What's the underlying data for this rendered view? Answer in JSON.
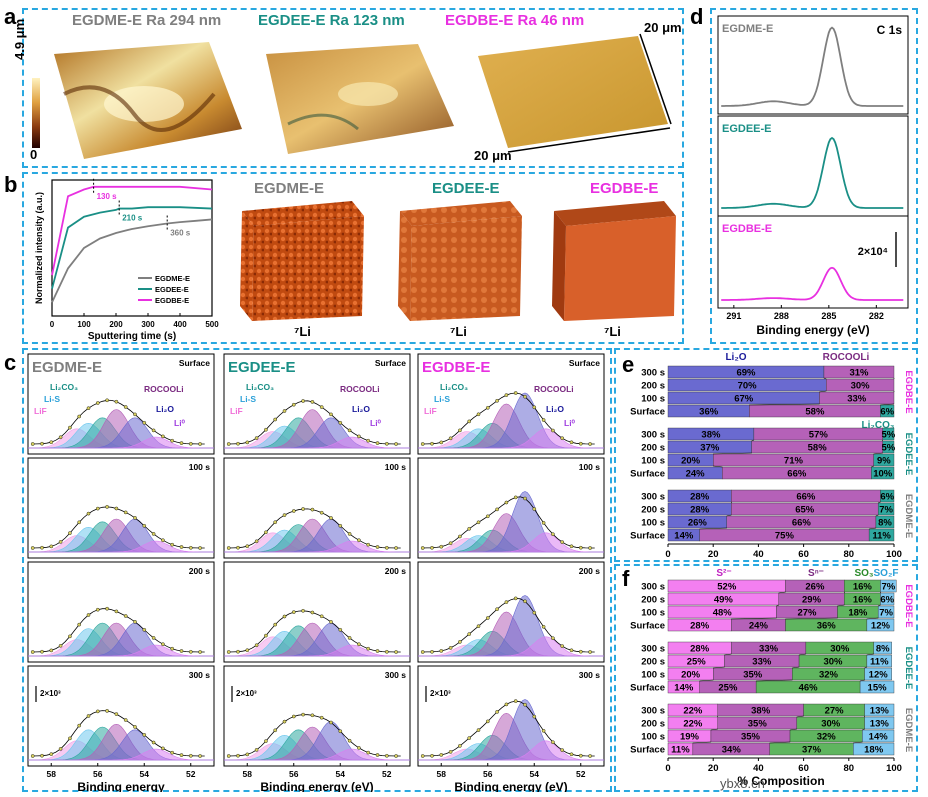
{
  "panel_labels": {
    "a": "a",
    "b": "b",
    "c": "c",
    "d": "d",
    "e": "e",
    "f": "f"
  },
  "colors": {
    "egdme": "#7f7f7f",
    "egdee": "#1a8f86",
    "egdbe": "#e830e0",
    "dash": "#29a8e0",
    "li2o": "#6a6ad0",
    "rocooli": "#b561b8",
    "li2co3": "#2ea89f",
    "s2": "#f37ff0",
    "sn": "#b561b8",
    "so3": "#5fb55f",
    "so2f": "#7fc8f0"
  },
  "a": {
    "titles": [
      "EGDME-E Ra 294 nm",
      "EGDEE-E Ra 123 nm",
      "EGDBE-E Ra 46 nm"
    ],
    "scale_top": "4.9 μm",
    "scale_bottom": "0",
    "dim1": "20 μm",
    "dim2": "20 μm"
  },
  "b": {
    "ylabel": "Normalized intensity (a.u.)",
    "xlabel": "Sputtering time (s)",
    "xticks": [
      "0",
      "100",
      "200",
      "300",
      "400",
      "500"
    ],
    "annotations": [
      "130 s",
      "210 s",
      "360 s"
    ],
    "legend": [
      "EGDME-E",
      "EGDEE-E",
      "EGDBE-E"
    ],
    "cube_titles": [
      "EGDME-E",
      "EGDEE-E",
      "EGDBE-E"
    ],
    "cube_label": "⁷Li"
  },
  "c": {
    "col_titles": [
      "EGDME-E",
      "EGDEE-E",
      "EGDBE-E"
    ],
    "row_labels": [
      "Surface",
      "100 s",
      "200 s",
      "300 s"
    ],
    "peak_labels": {
      "li2co3": "Li₂CO₃",
      "lis": "Li-S",
      "lif": "LiF",
      "rocooli": "ROCOOLi",
      "li2o": "Li₂O",
      "li0": "Li⁰"
    },
    "scale_label": "2×10³",
    "xticks": [
      "58",
      "56",
      "54",
      "52"
    ],
    "xlabels": [
      "Binding energy",
      "Binding energy (eV)",
      "Binding energy (eV)"
    ]
  },
  "d": {
    "title": "C 1s",
    "labels": [
      "EGDME-E",
      "EGDEE-E",
      "EGDBE-E"
    ],
    "scale": "2×10⁴",
    "xticks": [
      "291",
      "288",
      "285",
      "282"
    ],
    "xlabel": "Binding energy (eV)"
  },
  "e": {
    "headers": {
      "li2o": "Li₂O",
      "rocooli": "ROCOOLi",
      "li2co3": "Li₂CO₃"
    },
    "groups": [
      {
        "name": "EGDBE-E",
        "rows": [
          {
            "label": "300 s",
            "values": [
              69,
              31,
              0
            ],
            "texts": [
              "69%",
              "31%",
              ""
            ]
          },
          {
            "label": "200 s",
            "values": [
              70,
              30,
              0
            ],
            "texts": [
              "70%",
              "30%",
              ""
            ]
          },
          {
            "label": "100 s",
            "values": [
              67,
              33,
              0
            ],
            "texts": [
              "67%",
              "33%",
              ""
            ]
          },
          {
            "label": "Surface",
            "values": [
              36,
              58,
              6
            ],
            "texts": [
              "36%",
              "58%",
              "6%"
            ]
          }
        ]
      },
      {
        "name": "EGDEE-E",
        "rows": [
          {
            "label": "300 s",
            "values": [
              38,
              57,
              5
            ],
            "texts": [
              "38%",
              "57%",
              "5%"
            ]
          },
          {
            "label": "200 s",
            "values": [
              37,
              58,
              5
            ],
            "texts": [
              "37%",
              "58%",
              "5%"
            ]
          },
          {
            "label": "100 s",
            "values": [
              20,
              71,
              9
            ],
            "texts": [
              "20%",
              "71%",
              "9%"
            ]
          },
          {
            "label": "Surface",
            "values": [
              24,
              66,
              10
            ],
            "texts": [
              "24%",
              "66%",
              "10%"
            ]
          }
        ]
      },
      {
        "name": "EGDME-E",
        "rows": [
          {
            "label": "300 s",
            "values": [
              28,
              66,
              6
            ],
            "texts": [
              "28%",
              "66%",
              "6%"
            ]
          },
          {
            "label": "200 s",
            "values": [
              28,
              65,
              7
            ],
            "texts": [
              "28%",
              "65%",
              "7%"
            ]
          },
          {
            "label": "100 s",
            "values": [
              26,
              66,
              8
            ],
            "texts": [
              "26%",
              "66%",
              "8%"
            ]
          },
          {
            "label": "Surface",
            "values": [
              14,
              75,
              11
            ],
            "texts": [
              "14%",
              "75%",
              "11%"
            ]
          }
        ]
      }
    ],
    "xticks": [
      "0",
      "20",
      "40",
      "60",
      "80",
      "100"
    ]
  },
  "f": {
    "headers": {
      "s2": "S²⁻",
      "sn": "Sⁿ⁻",
      "so3": "SO₃",
      "so2f": "SO₂F"
    },
    "groups": [
      {
        "name": "EGDBE-E",
        "rows": [
          {
            "label": "300 s",
            "values": [
              52,
              26,
              16,
              7
            ],
            "texts": [
              "52%",
              "26%",
              "16%",
              "7%"
            ]
          },
          {
            "label": "200 s",
            "values": [
              49,
              29,
              16,
              6
            ],
            "texts": [
              "49%",
              "29%",
              "16%",
              "6%"
            ]
          },
          {
            "label": "100 s",
            "values": [
              48,
              27,
              18,
              7
            ],
            "texts": [
              "48%",
              "27%",
              "18%",
              "7%"
            ]
          },
          {
            "label": "Surface",
            "values": [
              28,
              24,
              36,
              12
            ],
            "texts": [
              "28%",
              "24%",
              "36%",
              "12%"
            ]
          }
        ]
      },
      {
        "name": "EGDEE-E",
        "rows": [
          {
            "label": "300 s",
            "values": [
              28,
              33,
              30,
              8
            ],
            "texts": [
              "28%",
              "33%",
              "30%",
              "8%"
            ]
          },
          {
            "label": "200 s",
            "values": [
              25,
              33,
              30,
              11
            ],
            "texts": [
              "25%",
              "33%",
              "30%",
              "11%"
            ]
          },
          {
            "label": "100 s",
            "values": [
              20,
              35,
              32,
              12
            ],
            "texts": [
              "20%",
              "35%",
              "32%",
              "12%"
            ]
          },
          {
            "label": "Surface",
            "values": [
              14,
              25,
              46,
              15
            ],
            "texts": [
              "14%",
              "25%",
              "46%",
              "15%"
            ]
          }
        ]
      },
      {
        "name": "EGDME-E",
        "rows": [
          {
            "label": "300 s",
            "values": [
              22,
              38,
              27,
              13
            ],
            "texts": [
              "22%",
              "38%",
              "27%",
              "13%"
            ]
          },
          {
            "label": "200 s",
            "values": [
              22,
              35,
              30,
              13
            ],
            "texts": [
              "22%",
              "35%",
              "30%",
              "13%"
            ]
          },
          {
            "label": "100 s",
            "values": [
              19,
              35,
              32,
              14
            ],
            "texts": [
              "19%",
              "35%",
              "32%",
              "14%"
            ]
          },
          {
            "label": "Surface",
            "values": [
              11,
              34,
              37,
              18
            ],
            "texts": [
              "11%",
              "34%",
              "37%",
              "18%"
            ]
          }
        ]
      }
    ],
    "xticks": [
      "0",
      "20",
      "40",
      "60",
      "80",
      "100"
    ],
    "xlabel": "% Composition",
    "watermark": "ybx8.cn"
  },
  "chart_data": [
    {
      "type": "line",
      "title": "",
      "xlabel": "Sputtering time (s)",
      "ylabel": "Normalized intensity (a.u.)",
      "xlim": [
        0,
        500
      ],
      "series": [
        {
          "name": "EGDME-E",
          "x": [
            0,
            50,
            100,
            150,
            200,
            250,
            300,
            360,
            400,
            450,
            500
          ],
          "y": [
            0.1,
            0.35,
            0.5,
            0.57,
            0.61,
            0.64,
            0.66,
            0.68,
            0.69,
            0.7,
            0.71
          ]
        },
        {
          "name": "EGDEE-E",
          "x": [
            0,
            50,
            100,
            150,
            200,
            210,
            250,
            300,
            400,
            500
          ],
          "y": [
            0.2,
            0.65,
            0.73,
            0.76,
            0.78,
            0.79,
            0.79,
            0.8,
            0.8,
            0.79
          ]
        },
        {
          "name": "EGDBE-E",
          "x": [
            0,
            50,
            100,
            130,
            150,
            200,
            250,
            300,
            400,
            500
          ],
          "y": [
            0.3,
            0.88,
            0.93,
            0.95,
            0.95,
            0.95,
            0.95,
            0.95,
            0.95,
            0.93
          ]
        }
      ],
      "annotations": [
        "130 s",
        "210 s",
        "360 s"
      ]
    },
    {
      "type": "line",
      "title": "C 1s",
      "xlabel": "Binding energy (eV)",
      "xlim": [
        292,
        280
      ],
      "series": [
        {
          "name": "EGDME-E",
          "peak": 284.8
        },
        {
          "name": "EGDEE-E",
          "peak": 284.8
        },
        {
          "name": "EGDBE-E",
          "peak": 284.8
        }
      ]
    },
    {
      "type": "bar",
      "title": "",
      "xlabel": "",
      "series": [
        {
          "name": "Li₂O"
        },
        {
          "name": "ROCOOLi"
        },
        {
          "name": "Li₂CO₃"
        }
      ]
    },
    {
      "type": "bar",
      "title": "",
      "xlabel": "% Composition",
      "series": [
        {
          "name": "S²⁻"
        },
        {
          "name": "Sⁿ⁻"
        },
        {
          "name": "SO₃"
        },
        {
          "name": "SO₂F"
        }
      ]
    }
  ]
}
